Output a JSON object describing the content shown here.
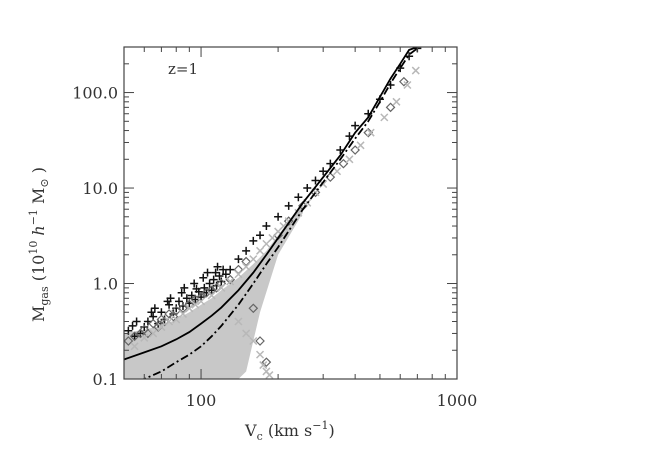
{
  "chart_data": {
    "type": "scatter",
    "title": "",
    "annotation": "z=1",
    "xlabel": {
      "main": "V",
      "sub": "c",
      "rest": " (km s",
      "exp": "−1",
      "close": ")"
    },
    "ylabel": {
      "main": "M",
      "sub": "gas",
      "open": " (10",
      "exp1": "10",
      "h": " h",
      "exp2": "−1",
      "msun": "  M",
      "sun_sub": "⊙",
      "close": " )"
    },
    "x_scale": "log",
    "y_scale": "log",
    "xlim": [
      50,
      1000
    ],
    "ylim": [
      0.1,
      300
    ],
    "x_ticks": [
      {
        "value": 100,
        "label": "100"
      },
      {
        "value": 1000,
        "label": "1000"
      }
    ],
    "y_ticks": [
      {
        "value": 0.1,
        "label": "0.1"
      },
      {
        "value": 1,
        "label": "1.0"
      },
      {
        "value": 10,
        "label": "10.0"
      },
      {
        "value": 100,
        "label": "100.0"
      }
    ],
    "grid": false,
    "legend": "none",
    "colors": {
      "black_points": "#111111",
      "dark_gray_points": "#666666",
      "light_gray_points": "#c8c8c8",
      "line": "#000000"
    },
    "lines": [
      {
        "style": "solid",
        "x": [
          50,
          60,
          70,
          80,
          90,
          100,
          110,
          120,
          140,
          160,
          180,
          200,
          250,
          300,
          350,
          400,
          450,
          500,
          550,
          600,
          650,
          700
        ],
        "y": [
          0.16,
          0.19,
          0.22,
          0.26,
          0.31,
          0.38,
          0.46,
          0.56,
          0.85,
          1.3,
          2.0,
          3.0,
          7.0,
          13,
          22,
          38,
          55,
          90,
          140,
          200,
          280,
          300
        ]
      },
      {
        "style": "dashdot",
        "x": [
          50,
          60,
          70,
          80,
          90,
          100,
          110,
          120,
          140,
          160,
          180,
          200,
          250,
          300,
          350,
          400,
          450,
          500,
          550,
          600,
          650,
          700
        ],
        "y": [
          0.08,
          0.1,
          0.12,
          0.15,
          0.18,
          0.22,
          0.28,
          0.36,
          0.6,
          1.0,
          1.6,
          2.4,
          6.0,
          11.5,
          20,
          33,
          50,
          80,
          125,
          180,
          250,
          290
        ]
      }
    ],
    "series": [
      {
        "marker": "plus",
        "color": "black",
        "x": [
          60,
          58,
          55,
          62,
          65,
          68,
          70,
          72,
          75,
          78,
          80,
          82,
          85,
          88,
          90,
          92,
          95,
          98,
          100,
          103,
          105,
          108,
          110,
          112,
          115,
          118,
          120,
          125,
          130,
          140,
          150,
          160,
          170,
          180,
          200,
          220,
          240,
          260,
          280,
          300,
          320,
          350,
          380,
          400,
          450,
          500,
          550,
          600,
          650,
          700,
          52,
          54,
          56,
          64,
          66,
          74,
          76,
          84,
          86,
          94,
          96,
          102,
          106,
          114,
          116,
          122
        ],
        "y": [
          0.35,
          0.3,
          0.28,
          0.4,
          0.45,
          0.38,
          0.5,
          0.42,
          0.6,
          0.48,
          0.55,
          0.65,
          0.58,
          0.7,
          0.62,
          0.75,
          0.68,
          0.82,
          0.72,
          0.9,
          0.8,
          1.0,
          0.85,
          1.1,
          0.95,
          1.2,
          1.05,
          1.25,
          1.4,
          1.8,
          2.2,
          2.8,
          3.2,
          4.0,
          5.0,
          6.5,
          8.0,
          10,
          12,
          15,
          18,
          25,
          35,
          45,
          60,
          85,
          120,
          180,
          240,
          290,
          0.32,
          0.36,
          0.4,
          0.5,
          0.55,
          0.65,
          0.7,
          0.8,
          0.9,
          1.0,
          0.88,
          1.15,
          1.3,
          1.3,
          1.5,
          1.4
        ]
      },
      {
        "marker": "diamond",
        "color": "dark_gray",
        "x": [
          52,
          55,
          58,
          60,
          62,
          65,
          68,
          70,
          72,
          75,
          78,
          80,
          85,
          90,
          95,
          100,
          105,
          110,
          115,
          120,
          130,
          140,
          150,
          160,
          170,
          180,
          200,
          220,
          250,
          280,
          320,
          360,
          400,
          450,
          550,
          620
        ],
        "y": [
          0.25,
          0.28,
          0.3,
          0.33,
          0.3,
          0.38,
          0.35,
          0.42,
          0.4,
          0.48,
          0.45,
          0.52,
          0.55,
          0.6,
          0.68,
          0.72,
          0.8,
          0.85,
          0.9,
          1.0,
          1.1,
          1.4,
          1.7,
          0.55,
          0.25,
          0.15,
          3.2,
          4.5,
          6.5,
          9,
          13,
          18,
          25,
          38,
          70,
          130
        ]
      },
      {
        "marker": "cross",
        "color": "light_gray",
        "x": [
          55,
          60,
          65,
          70,
          75,
          80,
          85,
          90,
          95,
          100,
          110,
          120,
          130,
          140,
          150,
          160,
          170,
          180,
          190,
          200,
          210,
          220,
          240,
          260,
          280,
          300,
          340,
          380,
          420,
          460,
          520,
          580,
          640,
          690,
          140,
          150,
          160,
          170,
          175,
          180,
          185
        ],
        "y": [
          0.22,
          0.27,
          0.3,
          0.35,
          0.4,
          0.42,
          0.48,
          0.55,
          0.6,
          0.65,
          0.75,
          0.9,
          1.05,
          1.25,
          1.5,
          1.8,
          2.2,
          2.6,
          3.0,
          3.5,
          4.0,
          4.5,
          5.5,
          7,
          9,
          11,
          15,
          20,
          28,
          38,
          55,
          80,
          120,
          170,
          0.4,
          0.3,
          0.25,
          0.18,
          0.14,
          0.12,
          0.11
        ]
      }
    ]
  }
}
